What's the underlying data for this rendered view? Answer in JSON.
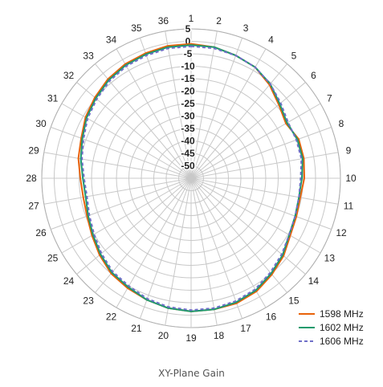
{
  "caption": "XY-Plane Gain",
  "chart_data": {
    "type": "polar-line",
    "title": "",
    "angle_labels": [
      "1",
      "2",
      "3",
      "4",
      "5",
      "6",
      "7",
      "8",
      "9",
      "10",
      "11",
      "12",
      "13",
      "14",
      "15",
      "16",
      "17",
      "18",
      "19",
      "20",
      "21",
      "22",
      "23",
      "24",
      "25",
      "26",
      "27",
      "28",
      "29",
      "30",
      "31",
      "32",
      "33",
      "34",
      "35",
      "36"
    ],
    "radial_labels": [
      "5",
      "0",
      "-5",
      "-10",
      "-15",
      "-20",
      "-25",
      "-30",
      "-35",
      "-40",
      "-45",
      "-50"
    ],
    "rlim": [
      -55,
      5
    ],
    "grid": true,
    "legend_position": "bottom-right",
    "series": [
      {
        "name": "1598 MHz",
        "color": "#e8620a",
        "dash": false,
        "values": [
          -1,
          -1.5,
          -2.5,
          -3.5,
          -6,
          -9,
          -11,
          -9,
          -9,
          -9.5,
          -10.5,
          -10,
          -9,
          -6.5,
          -4.5,
          -2.5,
          -1.5,
          -1.5,
          -1.5,
          -2,
          -3,
          -4,
          -5,
          -7,
          -9,
          -10.5,
          -11,
          -10.5,
          -9,
          -8,
          -6,
          -4.5,
          -3,
          -2,
          -1.5,
          -1
        ]
      },
      {
        "name": "1602 MHz",
        "color": "#1a9a6c",
        "dash": false,
        "values": [
          -1.5,
          -1.5,
          -2.5,
          -3.5,
          -5.5,
          -8.5,
          -10.5,
          -9.5,
          -9.5,
          -10.5,
          -11,
          -10.5,
          -9.5,
          -7,
          -5,
          -3,
          -2,
          -1.5,
          -1.5,
          -2,
          -3,
          -4.5,
          -5.5,
          -7.5,
          -9.5,
          -11,
          -12,
          -11.5,
          -10,
          -8.5,
          -6.5,
          -5,
          -3.5,
          -2.5,
          -2,
          -1.5
        ]
      },
      {
        "name": "1606 MHz",
        "color": "#6f6fc8",
        "dash": true,
        "values": [
          -2,
          -2,
          -2.5,
          -3.5,
          -5.5,
          -8,
          -10,
          -10,
          -10,
          -11,
          -11,
          -10.5,
          -9.5,
          -7.5,
          -5.5,
          -3.5,
          -2.5,
          -2,
          -2,
          -2.5,
          -3.5,
          -5,
          -6,
          -8,
          -10,
          -11.5,
          -12.5,
          -12,
          -10.5,
          -9,
          -7,
          -5.5,
          -4,
          -3,
          -2.5,
          -2
        ]
      }
    ]
  }
}
